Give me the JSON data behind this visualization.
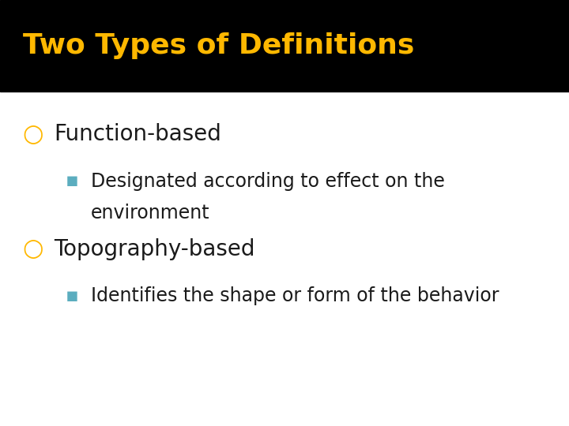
{
  "title": "Two Types of Definitions",
  "title_color": "#FFB800",
  "title_bg_color": "#000000",
  "body_bg_color": "#FFFFFF",
  "bullet1_text": "Function-based",
  "bullet1_color": "#FFB800",
  "sub1_text1": "Designated according to effect on the",
  "sub1_text2": "environment",
  "sub1_color": "#5BADBF",
  "bullet2_text": "Topography-based",
  "bullet2_color": "#FFB800",
  "sub2_text": "Identifies the shape or form of the behavior",
  "sub2_color": "#5BADBF",
  "text_color": "#1a1a1a",
  "title_fontsize": 26,
  "bullet_fontsize": 20,
  "sub_fontsize": 17,
  "title_bar_height": 0.215
}
